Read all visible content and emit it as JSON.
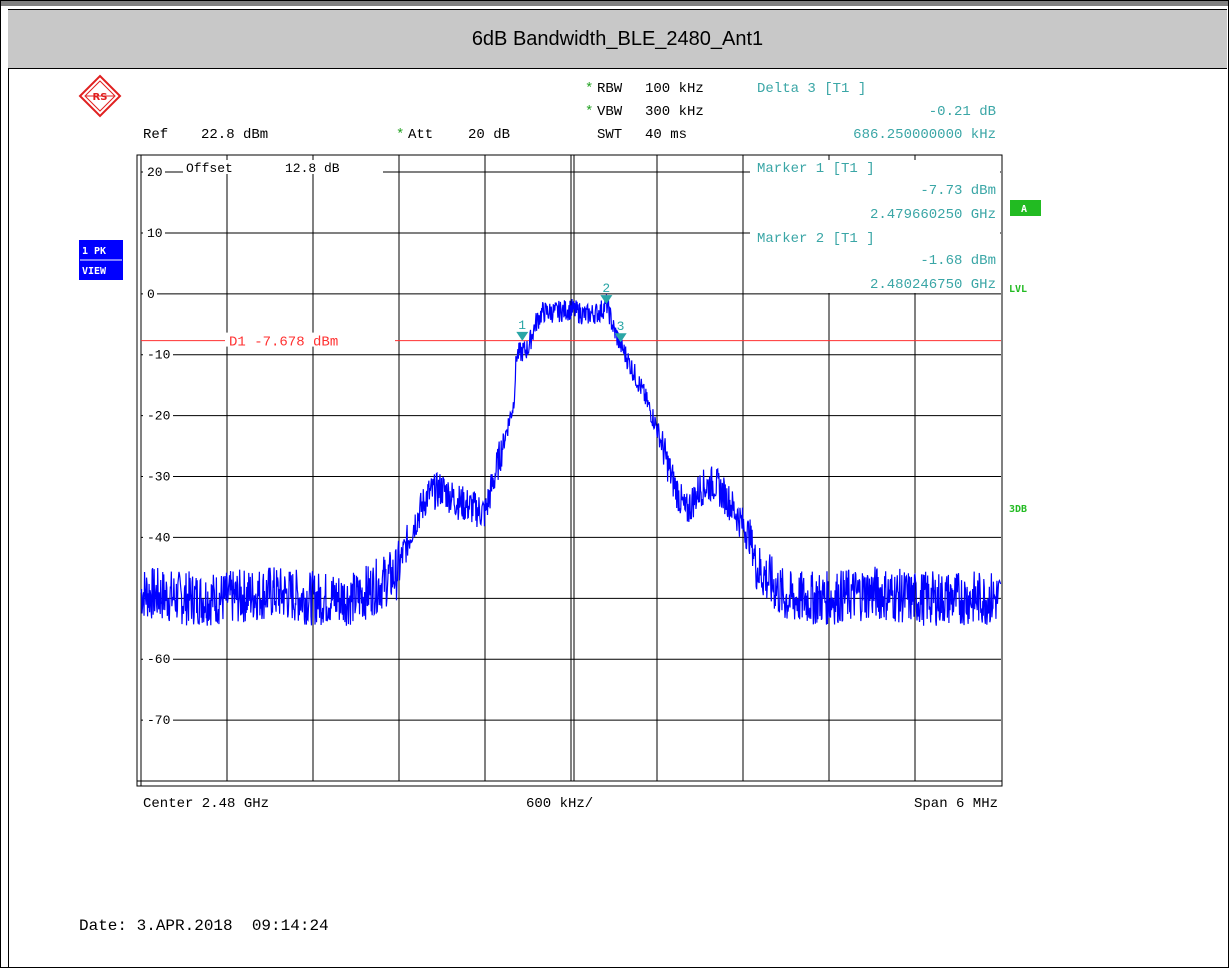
{
  "title": "6dB Bandwidth_BLE_2480_Ant1",
  "header": {
    "rbw_label": "RBW",
    "rbw_value": "100 kHz",
    "vbw_label": "VBW",
    "vbw_value": "300 kHz",
    "swt_label": "SWT",
    "swt_value": "40 ms",
    "ref_label": "Ref",
    "ref_value": "22.8 dBm",
    "att_label": "Att",
    "att_value": "20 dB",
    "delta_label": "Delta 3 [T1 ]",
    "delta_level": "-0.21 dB",
    "delta_freq": "686.250000000 kHz",
    "star_symbol": "*",
    "logo_text": "RS"
  },
  "markers_text": {
    "m1_label": "Marker 1 [T1 ]",
    "m1_level": "-7.73 dBm",
    "m1_freq": "2.479660250 GHz",
    "m2_label": "Marker 2 [T1 ]",
    "m2_level": "-1.68 dBm",
    "m2_freq": "2.480246750 GHz"
  },
  "plot": {
    "offset_label": "Offset",
    "offset_value": "12.8 dB",
    "display_line_label": "D1 -7.678 dBm"
  },
  "side": {
    "trace_badge_line1": "1 PK",
    "trace_badge_line2": "VIEW",
    "a_badge": "A",
    "lvl_label": "LVL",
    "db3_label": "3DB"
  },
  "footer": {
    "center": "Center 2.48 GHz",
    "div": "600 kHz/",
    "span": "Span 6 MHz",
    "date": "Date: 3.APR.2018  09:14:24"
  },
  "colors": {
    "trace": "#0000ff",
    "display_line": "#ff3030",
    "marker": "#2aa6a6",
    "grid": "#000000",
    "badge_bg": "#0000ff",
    "side_green": "#22bb22"
  },
  "chart_data": {
    "type": "line",
    "title": "6dB Bandwidth_BLE_2480_Ant1",
    "xlabel": "",
    "ylabel": "",
    "x_unit": "GHz",
    "xlim": [
      2.477,
      2.483
    ],
    "ylim": [
      -80,
      22.8
    ],
    "y_ticks": [
      20,
      10,
      0,
      -10,
      -20,
      -30,
      -40,
      -60,
      -70
    ],
    "grid": true,
    "display_line_dbm": -7.678,
    "trace": {
      "x": [
        2.477,
        2.4773,
        2.4776,
        2.4779,
        2.4782,
        2.4785,
        2.47878,
        2.4789,
        2.479,
        2.4791,
        2.4792,
        2.4794,
        2.4795,
        2.4796,
        2.47962,
        2.4797,
        2.47975,
        2.4798,
        2.4799,
        2.48,
        2.4801,
        2.4802,
        2.48025,
        2.4803,
        2.48035,
        2.4804,
        2.4805,
        2.4806,
        2.4807,
        2.4808,
        2.4809,
        2.481,
        2.4811,
        2.48125,
        2.4813,
        2.4815,
        2.4818,
        2.4821,
        2.4824,
        2.4827,
        2.483
      ],
      "y": [
        -49,
        -50,
        -50,
        -49,
        -50,
        -50,
        -46,
        -38,
        -33,
        -32,
        -34,
        -36,
        -27,
        -18,
        -10,
        -9,
        -5,
        -3,
        -3,
        -2.5,
        -3.5,
        -3,
        -1.7,
        -6,
        -8.5,
        -11,
        -16,
        -22,
        -30,
        -36,
        -32,
        -31,
        -34,
        -40,
        -45,
        -50,
        -50,
        -49,
        -50,
        -50,
        -50
      ]
    },
    "markers": [
      {
        "label": "1",
        "x": 2.47966025,
        "y": -7.73
      },
      {
        "label": "2",
        "x": 2.48024675,
        "y": -1.68
      },
      {
        "label": "3",
        "x": 2.4803465,
        "y": -7.94
      }
    ]
  }
}
